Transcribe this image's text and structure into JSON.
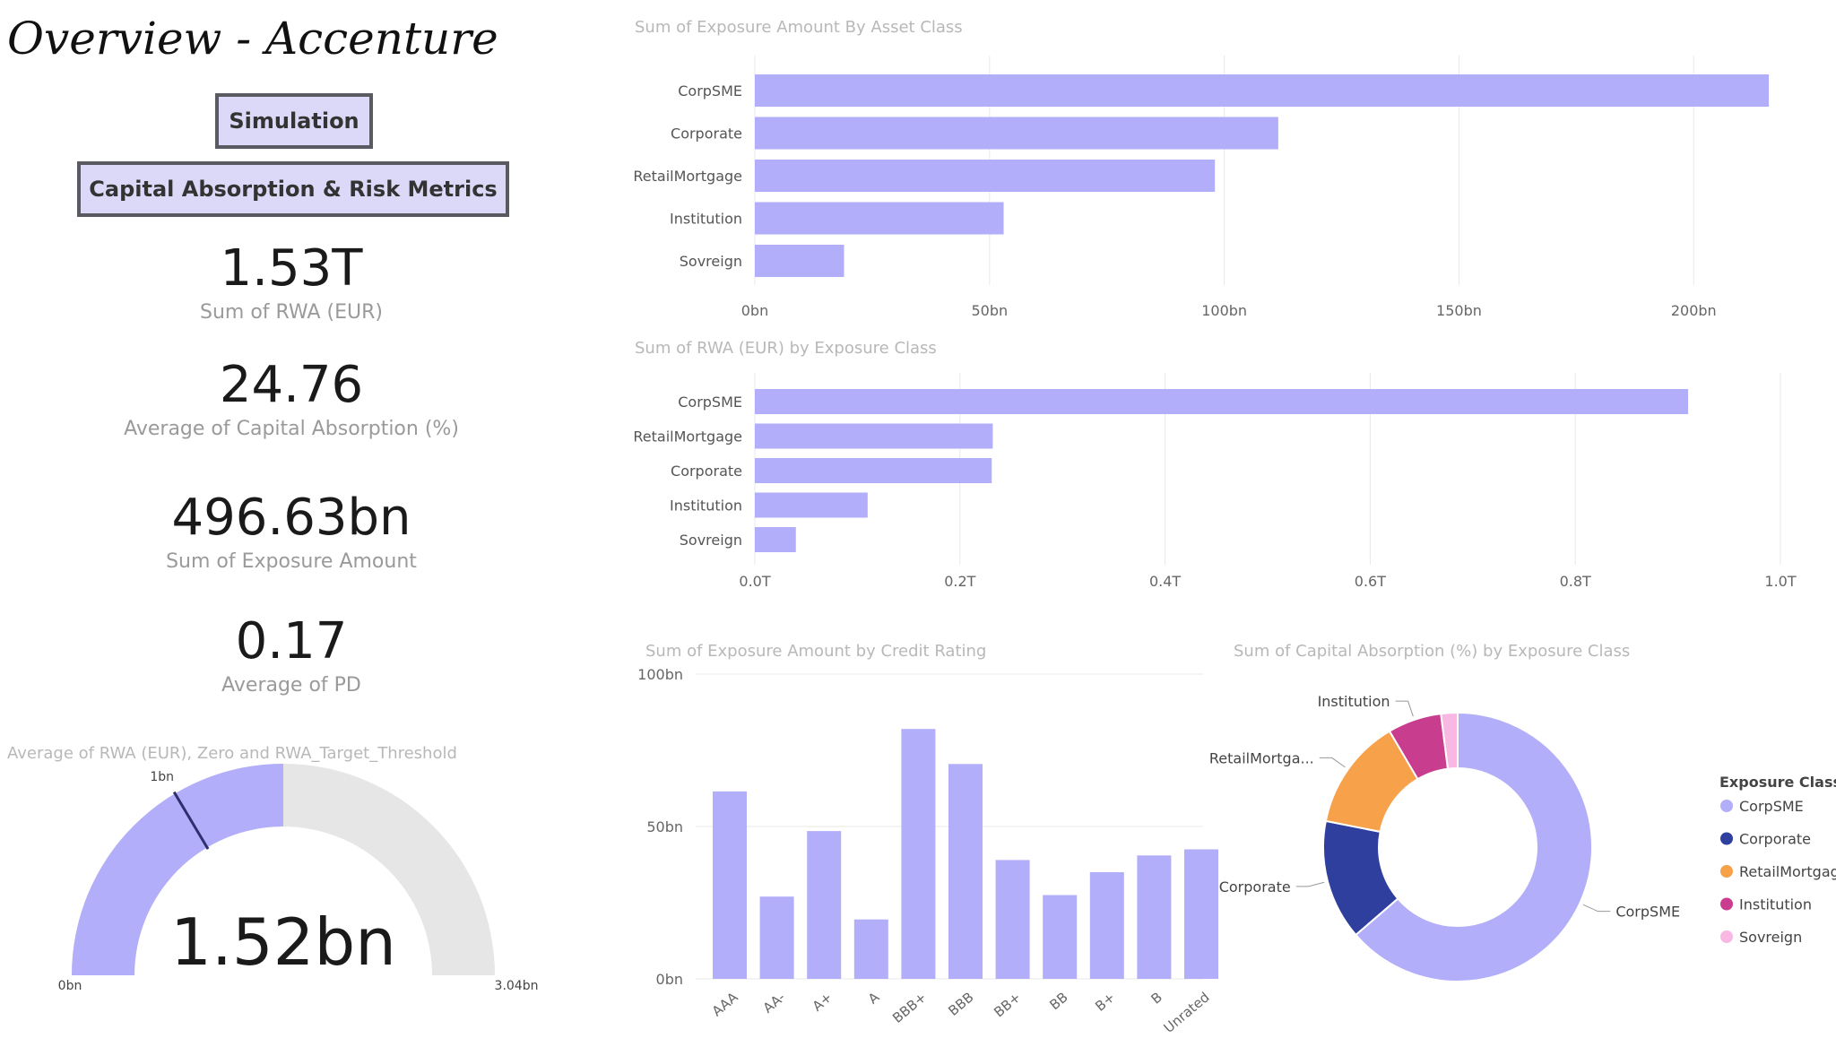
{
  "header": {
    "title": "Overview - Accenture"
  },
  "nav": {
    "simulation_label": "Simulation",
    "capital_label": "Capital Absorption & Risk Metrics"
  },
  "kpis": [
    {
      "value": "1.53T",
      "label": "Sum of RWA (EUR)"
    },
    {
      "value": "24.76",
      "label": "Average of Capital Absorption (%)"
    },
    {
      "value": "496.63bn",
      "label": "Sum of Exposure Amount"
    },
    {
      "value": "0.17",
      "label": "Average of PD"
    }
  ],
  "colors": {
    "bar": "#b3aef9",
    "gauge_track": "#e6e6e6",
    "target_line": "#2d2f6e"
  },
  "chart_data": [
    {
      "id": "exposure_by_asset_class",
      "type": "bar",
      "orientation": "horizontal",
      "title": "Sum of Exposure Amount By Asset Class",
      "categories": [
        "CorpSME",
        "Corporate",
        "RetailMortgage",
        "Institution",
        "Sovreign"
      ],
      "values": [
        216,
        111.5,
        98,
        53,
        19
      ],
      "xlim": [
        0,
        220
      ],
      "ticks": [
        0,
        50,
        100,
        150,
        200
      ],
      "tick_labels": [
        "0bn",
        "50bn",
        "100bn",
        "150bn",
        "200bn"
      ],
      "grid": true
    },
    {
      "id": "rwa_by_exposure_class",
      "type": "bar",
      "orientation": "horizontal",
      "title": "Sum of RWA (EUR) by Exposure Class",
      "categories": [
        "CorpSME",
        "RetailMortgage",
        "Corporate",
        "Institution",
        "Sovreign"
      ],
      "values": [
        0.91,
        0.232,
        0.231,
        0.11,
        0.04
      ],
      "xlim": [
        0,
        1.0
      ],
      "ticks": [
        0,
        0.2,
        0.4,
        0.6,
        0.8,
        1.0
      ],
      "tick_labels": [
        "0.0T",
        "0.2T",
        "0.4T",
        "0.6T",
        "0.8T",
        "1.0T"
      ],
      "grid": true
    },
    {
      "id": "exposure_by_credit_rating",
      "type": "bar",
      "orientation": "vertical",
      "title": "Sum of Exposure Amount by Credit Rating",
      "categories": [
        "AAA",
        "AA-",
        "A+",
        "A",
        "BBB+",
        "BBB",
        "BB+",
        "BB",
        "B+",
        "B",
        "Unrated"
      ],
      "values": [
        61.5,
        27,
        48.5,
        19.5,
        82,
        70.5,
        39,
        27.5,
        35,
        40.5,
        42.5
      ],
      "ylim": [
        0,
        100
      ],
      "ticks": [
        0,
        50,
        100
      ],
      "tick_labels": [
        "0bn",
        "50bn",
        "100bn"
      ],
      "grid": true
    },
    {
      "id": "capital_absorption_by_exposure_class",
      "type": "pie",
      "donut": true,
      "title": "Sum of Capital Absorption (%) by Exposure Class",
      "legend_title": "Exposure Class",
      "legend_position": "right",
      "categories": [
        "CorpSME",
        "Corporate",
        "RetailMortgage",
        "Institution",
        "Sovreign"
      ],
      "callout_labels": [
        "CorpSME",
        "Corporate",
        "RetailMortga...",
        "Institution",
        ""
      ],
      "values": [
        64,
        14.5,
        13.5,
        6.5,
        2
      ],
      "colors": [
        "#b3aef9",
        "#2f3f9e",
        "#f7a14a",
        "#c93d8e",
        "#f9b8e3"
      ]
    },
    {
      "id": "rwa_gauge",
      "type": "gauge",
      "title": "Average of RWA (EUR), Zero and RWA_Target_Threshold",
      "value": 1.52,
      "value_label": "1.52bn",
      "min": 0,
      "min_label": "0bn",
      "max": 3.04,
      "max_label": "3.04bn",
      "target": 1.0,
      "target_label": "1bn"
    }
  ]
}
